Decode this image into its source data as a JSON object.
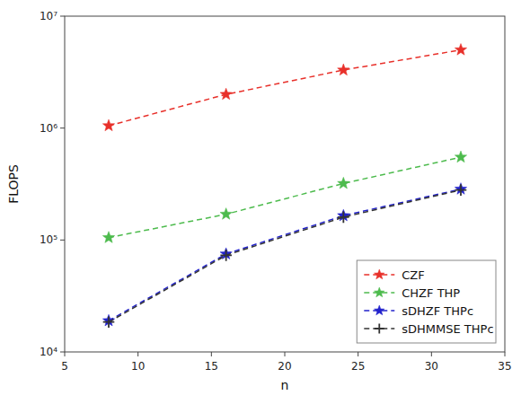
{
  "chart_data": {
    "type": "line",
    "xlabel": "n",
    "ylabel": "FLOPS",
    "x": [
      8,
      16,
      24,
      32
    ],
    "series": [
      {
        "name": "CZF",
        "color": "#e8302a",
        "marker": "star",
        "line_style": "dashed",
        "values": [
          1050000.0,
          2000000.0,
          3300000.0,
          5000000.0
        ]
      },
      {
        "name": "CHZF THP",
        "color": "#4dbb4d",
        "marker": "star",
        "line_style": "dashed",
        "values": [
          105000.0,
          170000.0,
          320000.0,
          550000.0
        ]
      },
      {
        "name": "sDHZF THPc",
        "color": "#2222cc",
        "marker": "star",
        "line_style": "dashed",
        "values": [
          19000.0,
          75000.0,
          165000.0,
          285000.0
        ]
      },
      {
        "name": "sDHMMSE THPc",
        "color": "#333333",
        "marker": "plus",
        "line_style": "dashed",
        "values": [
          18500.0,
          73000.0,
          160000.0,
          280000.0
        ]
      }
    ],
    "xlim": [
      5,
      35
    ],
    "ylim": [
      10000,
      10000000
    ],
    "xticks": [
      5,
      10,
      15,
      20,
      25,
      30,
      35
    ],
    "yticks": [
      {
        "value": 10000,
        "label": "10⁴"
      },
      {
        "value": 100000,
        "label": "10⁵"
      },
      {
        "value": 1000000,
        "label": "10⁶"
      },
      {
        "value": 10000000,
        "label": "10⁷"
      }
    ],
    "log": "y",
    "grid": false,
    "legend": "lower right"
  }
}
